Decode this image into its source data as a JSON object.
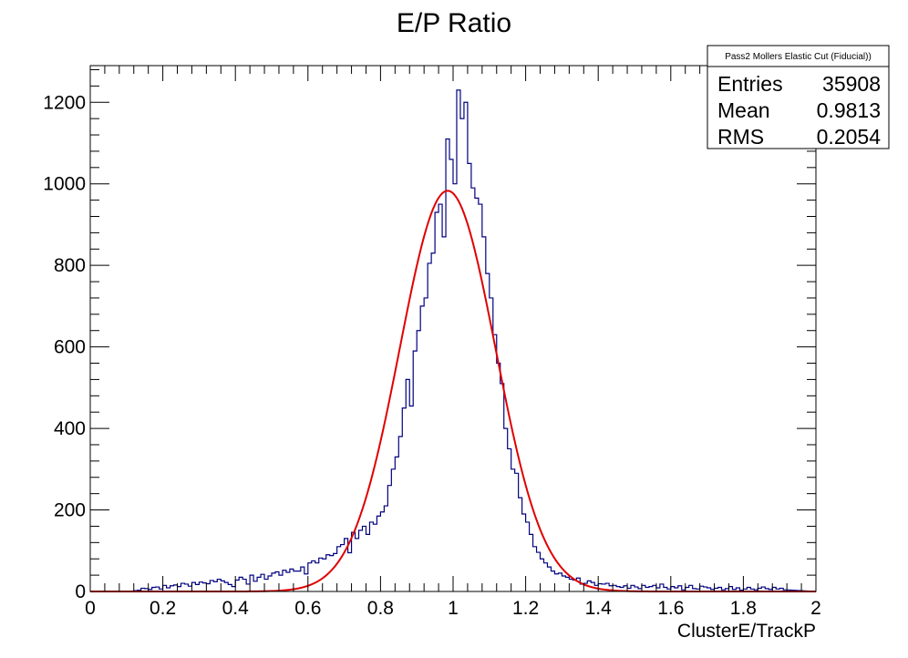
{
  "chart_data": {
    "type": "histogram",
    "title": "E/P Ratio",
    "xlabel": "ClusterE/TrackP",
    "ylabel": "",
    "xlim": [
      0,
      2
    ],
    "ylim": [
      0,
      1290
    ],
    "x_ticks": [
      "0",
      "0.2",
      "0.4",
      "0.6",
      "0.8",
      "1",
      "1.2",
      "1.4",
      "1.6",
      "1.8",
      "2"
    ],
    "y_ticks": [
      "0",
      "200",
      "400",
      "600",
      "800",
      "1000",
      "1200"
    ],
    "bin_width": 0.01,
    "bin_lower_edges": [
      0.0,
      0.01,
      0.02,
      0.03,
      0.04,
      0.05,
      0.06,
      0.07,
      0.08,
      0.09,
      0.1,
      0.11,
      0.12,
      0.13,
      0.14,
      0.15,
      0.16,
      0.17,
      0.18,
      0.19,
      0.2,
      0.21,
      0.22,
      0.23,
      0.24,
      0.25,
      0.26,
      0.27,
      0.28,
      0.29,
      0.3,
      0.31,
      0.32,
      0.33,
      0.34,
      0.35,
      0.36,
      0.37,
      0.38,
      0.39,
      0.4,
      0.41,
      0.42,
      0.43,
      0.44,
      0.45,
      0.46,
      0.47,
      0.48,
      0.49,
      0.5,
      0.51,
      0.52,
      0.53,
      0.54,
      0.55,
      0.56,
      0.57,
      0.58,
      0.59,
      0.6,
      0.61,
      0.62,
      0.63,
      0.64,
      0.65,
      0.66,
      0.67,
      0.68,
      0.69,
      0.7,
      0.71,
      0.72,
      0.73,
      0.74,
      0.75,
      0.76,
      0.77,
      0.78,
      0.79,
      0.8,
      0.81,
      0.82,
      0.83,
      0.84,
      0.85,
      0.86,
      0.87,
      0.88,
      0.89,
      0.9,
      0.91,
      0.92,
      0.93,
      0.94,
      0.95,
      0.96,
      0.97,
      0.98,
      0.99,
      1.0,
      1.01,
      1.02,
      1.03,
      1.04,
      1.05,
      1.06,
      1.07,
      1.08,
      1.09,
      1.1,
      1.11,
      1.12,
      1.13,
      1.14,
      1.15,
      1.16,
      1.17,
      1.18,
      1.19,
      1.2,
      1.21,
      1.22,
      1.23,
      1.24,
      1.25,
      1.26,
      1.27,
      1.28,
      1.29,
      1.3,
      1.31,
      1.32,
      1.33,
      1.34,
      1.35,
      1.36,
      1.37,
      1.38,
      1.39,
      1.4,
      1.41,
      1.42,
      1.43,
      1.44,
      1.45,
      1.46,
      1.47,
      1.48,
      1.49,
      1.5,
      1.51,
      1.52,
      1.53,
      1.54,
      1.55,
      1.56,
      1.57,
      1.58,
      1.59,
      1.6,
      1.61,
      1.62,
      1.63,
      1.64,
      1.65,
      1.66,
      1.67,
      1.68,
      1.69,
      1.7,
      1.71,
      1.72,
      1.73,
      1.74,
      1.75,
      1.76,
      1.77,
      1.78,
      1.79,
      1.8,
      1.81,
      1.82,
      1.83,
      1.84,
      1.85,
      1.86,
      1.87,
      1.88,
      1.89,
      1.9,
      1.91,
      1.92,
      1.93,
      1.94,
      1.95,
      1.96,
      1.97,
      1.98,
      1.99
    ],
    "counts": [
      0,
      0,
      0,
      0,
      0,
      0,
      0,
      0,
      0,
      0,
      0,
      0,
      2,
      3,
      8,
      7,
      5,
      10,
      11,
      6,
      15,
      9,
      14,
      16,
      12,
      20,
      18,
      13,
      22,
      17,
      23,
      21,
      19,
      27,
      24,
      30,
      26,
      22,
      17,
      12,
      28,
      35,
      30,
      18,
      40,
      25,
      35,
      42,
      30,
      38,
      45,
      48,
      40,
      52,
      47,
      55,
      50,
      50,
      60,
      43,
      70,
      75,
      70,
      82,
      80,
      90,
      88,
      93,
      110,
      115,
      130,
      95,
      145,
      130,
      150,
      160,
      140,
      170,
      165,
      185,
      195,
      210,
      260,
      300,
      330,
      380,
      450,
      520,
      455,
      590,
      640,
      700,
      720,
      805,
      830,
      930,
      950,
      870,
      1110,
      1060,
      1000,
      1230,
      1160,
      1200,
      1050,
      990,
      965,
      950,
      870,
      780,
      720,
      630,
      560,
      510,
      400,
      350,
      300,
      290,
      230,
      190,
      170,
      140,
      110,
      96,
      80,
      70,
      60,
      50,
      43,
      45,
      38,
      35,
      30,
      28,
      33,
      18,
      20,
      26,
      22,
      15,
      19,
      18,
      20,
      14,
      15,
      12,
      10,
      14,
      8,
      15,
      11,
      7,
      15,
      10,
      12,
      15,
      9,
      18,
      10,
      6,
      12,
      9,
      14,
      4,
      10,
      15,
      7,
      6,
      13,
      11,
      9,
      5,
      8,
      10,
      4,
      7,
      12,
      5,
      9,
      3,
      6,
      10,
      6,
      4,
      8,
      11,
      7,
      5,
      10,
      6,
      8,
      4
    ],
    "series": [
      {
        "name": "histogram",
        "color": "#000080"
      },
      {
        "name": "gaussian fit",
        "color": "#e00000"
      }
    ],
    "fit": {
      "type": "gaussian",
      "constant": 983,
      "mean": 0.985,
      "sigma": 0.132,
      "color": "#e00000"
    },
    "stats_box": {
      "title": "Pass2 Mollers Elastic Cut (Fiducial))",
      "rows": [
        {
          "label": "Entries",
          "value": "35908"
        },
        {
          "label": "Mean",
          "value": "0.9813"
        },
        {
          "label": "RMS",
          "value": "0.2054"
        }
      ]
    },
    "grid": false,
    "legend": "none"
  }
}
